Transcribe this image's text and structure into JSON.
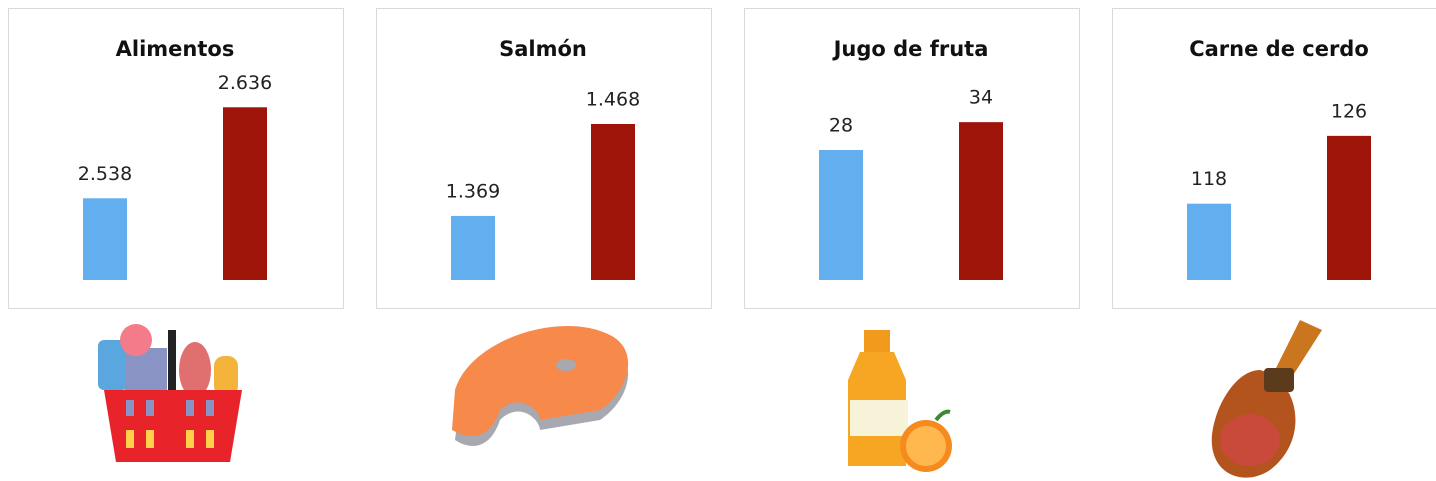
{
  "chart_data": [
    {
      "type": "bar",
      "title": "Alimentos",
      "categories": [
        null,
        null
      ],
      "values": [
        2.538,
        2.636
      ],
      "colors": [
        "#63aeee",
        "#9e1408"
      ],
      "ylim": [
        2.45,
        2.66
      ]
    },
    {
      "type": "bar",
      "title": "Salmón",
      "categories": [
        null,
        null
      ],
      "values": [
        1.369,
        1.468
      ],
      "colors": [
        "#63aeee",
        "#9e1408"
      ],
      "ylim": [
        1.3,
        1.51
      ]
    },
    {
      "type": "bar",
      "title": "Jugo de fruta",
      "categories": [
        null,
        null
      ],
      "values": [
        28,
        34
      ],
      "colors": [
        "#63aeee",
        "#9e1408"
      ],
      "ylim": [
        0,
        42
      ]
    },
    {
      "type": "bar",
      "title": "Carne de cerdo",
      "categories": [
        null,
        null
      ],
      "values": [
        118,
        126
      ],
      "colors": [
        "#63aeee",
        "#9e1408"
      ],
      "ylim": [
        109,
        132
      ]
    }
  ]
}
